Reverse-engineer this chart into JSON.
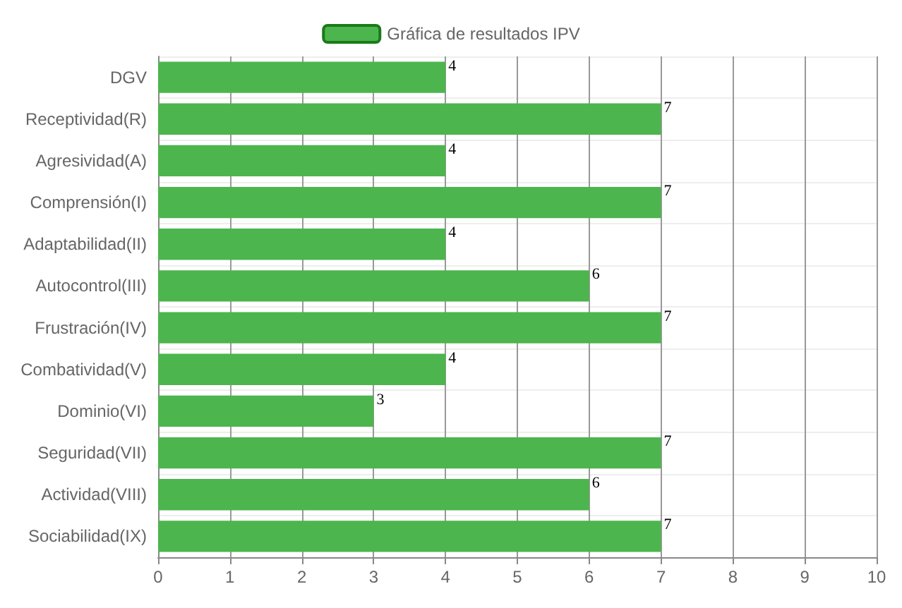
{
  "chart_data": {
    "type": "bar",
    "orientation": "horizontal",
    "categories": [
      "DGV",
      "Receptividad(R)",
      "Agresividad(A)",
      "Comprensión(I)",
      "Adaptabilidad(II)",
      "Autocontrol(III)",
      "Frustración(IV)",
      "Combatividad(V)",
      "Dominio(VI)",
      "Seguridad(VII)",
      "Actividad(VIII)",
      "Sociabilidad(IX)"
    ],
    "series": [
      {
        "name": "Gráfica de resultados IPV",
        "color": "#4db54d",
        "values": [
          4,
          7,
          4,
          7,
          4,
          6,
          7,
          4,
          3,
          7,
          6,
          7
        ]
      }
    ],
    "xlim": [
      0,
      10
    ],
    "xticks": [
      0,
      1,
      2,
      3,
      4,
      5,
      6,
      7,
      8,
      9,
      10
    ],
    "grid": true,
    "legend": "top",
    "data_labels": true
  }
}
